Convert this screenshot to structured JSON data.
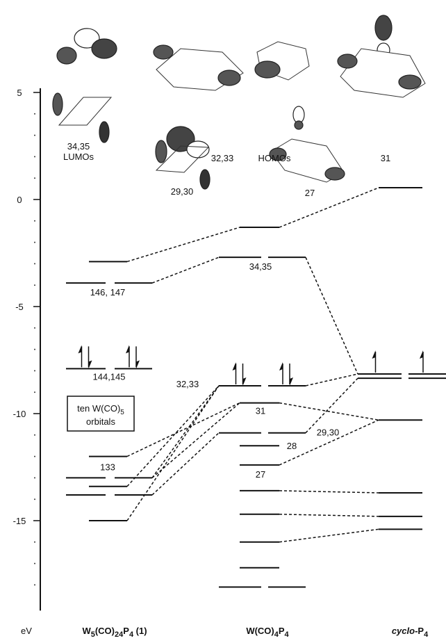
{
  "axis": {
    "unit": "eV",
    "ylim": [
      -19.2,
      5.2
    ],
    "yticks": [
      5,
      0,
      -5,
      -10,
      -15
    ],
    "minor_ticks": [
      4,
      3,
      2,
      1,
      -1,
      -2,
      -3,
      -4,
      -6,
      -7,
      -8,
      -9,
      -11,
      -12,
      -13,
      -14,
      -16,
      -17,
      -18
    ]
  },
  "orbital_pictures": {
    "lumo_numbers": "34,35",
    "lumo_caption": "LUMOs",
    "homo_numbers": "32,33",
    "homo_caption": "HOMOs",
    "p4_top": "31",
    "lower_left": "29,30",
    "lower_right": "27"
  },
  "box": {
    "line1": [
      "ten W(CO)",
      "5"
    ],
    "line2": "orbitals"
  },
  "columns": [
    {
      "name": [
        "W",
        "5",
        "(CO)",
        "24",
        "P",
        "4",
        " (1)"
      ],
      "levels": [
        {
          "energy": -2.9
        },
        {
          "energy": -3.9,
          "degenerate": true,
          "label": "146, 147"
        },
        {
          "energy": -7.9,
          "degenerate": true,
          "electrons": 2,
          "label": "144,145"
        },
        {
          "energy": -12.0,
          "label": "133"
        },
        {
          "energy": -13.0,
          "degenerate": true
        },
        {
          "energy": -13.4
        },
        {
          "energy": -13.8,
          "degenerate": true
        },
        {
          "energy": -15.0
        }
      ]
    },
    {
      "name": [
        "W(CO)",
        "4",
        "P",
        "4"
      ],
      "levels": [
        {
          "energy": -1.3
        },
        {
          "energy": -2.7,
          "degenerate": true,
          "label": "34,35"
        },
        {
          "energy": -8.7,
          "degenerate": true,
          "electrons": 2,
          "label": "32,33"
        },
        {
          "energy": -9.5,
          "label": "31"
        },
        {
          "energy": -10.9,
          "degenerate": true,
          "label": "29,30"
        },
        {
          "energy": -11.5,
          "label": "28"
        },
        {
          "energy": -12.4,
          "label": "27"
        },
        {
          "energy": -13.6
        },
        {
          "energy": -14.7
        },
        {
          "energy": -16.0
        },
        {
          "energy": -17.2
        },
        {
          "energy": -18.1,
          "degenerate": true
        }
      ]
    },
    {
      "name": [
        "cyclo",
        "-P",
        "4"
      ],
      "levels": [
        {
          "energy": 0.55
        },
        {
          "energy": -8.15,
          "degenerate": true,
          "electrons": 1
        },
        {
          "energy": -8.35,
          "degenerate": true
        },
        {
          "energy": -10.3
        },
        {
          "energy": -13.7
        },
        {
          "energy": -14.8
        },
        {
          "energy": -15.4
        }
      ]
    }
  ]
}
